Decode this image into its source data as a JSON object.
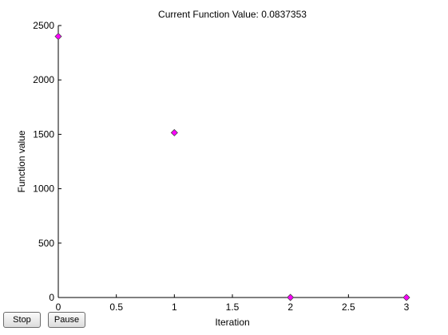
{
  "chart_data": {
    "type": "scatter",
    "title": "Current Function Value: 0.0837353",
    "xlabel": "Iteration",
    "ylabel": "Function value",
    "xlim": [
      0,
      3
    ],
    "ylim": [
      0,
      2500
    ],
    "xticks": [
      0,
      0.5,
      1,
      1.5,
      2,
      2.5,
      3
    ],
    "xtick_labels": [
      "0",
      "0.5",
      "1",
      "1.5",
      "2",
      "2.5",
      "3"
    ],
    "yticks": [
      0,
      500,
      1000,
      1500,
      2000,
      2500
    ],
    "ytick_labels": [
      "0",
      "500",
      "1000",
      "1500",
      "2000",
      "2500"
    ],
    "grid": false,
    "marker": "diamond",
    "marker_color": "#ff00ff",
    "x": [
      0,
      1,
      2,
      3
    ],
    "y": [
      2400,
      1515,
      0.5,
      0.0837353
    ]
  },
  "controls": {
    "stop_label": "Stop",
    "pause_label": "Pause"
  }
}
